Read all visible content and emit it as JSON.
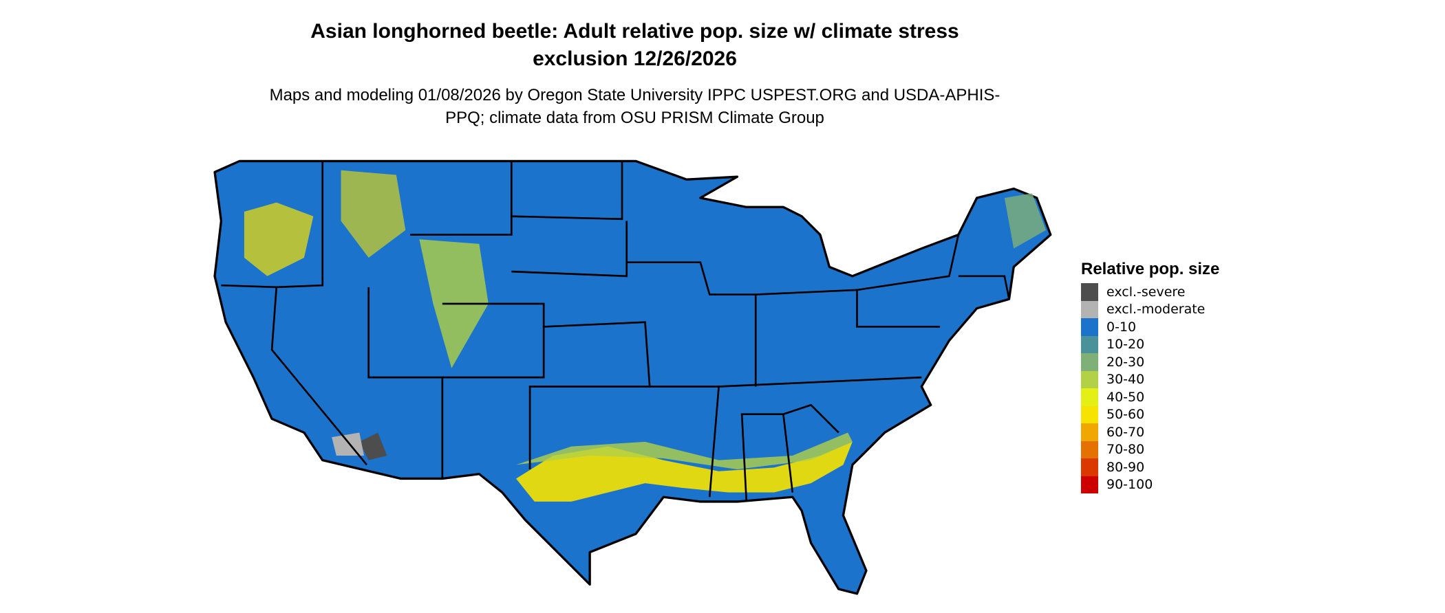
{
  "title": "Asian longhorned beetle: Adult relative pop. size w/ climate stress exclusion 12/26/2026",
  "subtitle": "Maps and modeling 01/08/2026 by Oregon State University IPPC USPEST.ORG and USDA-APHIS-PPQ; climate data from OSU PRISM Climate Group",
  "legend": {
    "title": "Relative pop. size",
    "items": [
      {
        "label": "excl.-severe",
        "color": "#4d4d4d"
      },
      {
        "label": "excl.-moderate",
        "color": "#b3b3b3"
      },
      {
        "label": "0-10",
        "color": "#1b73cc"
      },
      {
        "label": "10-20",
        "color": "#4a929a"
      },
      {
        "label": "20-30",
        "color": "#7fb077"
      },
      {
        "label": "30-40",
        "color": "#b2d147"
      },
      {
        "label": "40-50",
        "color": "#e4f015"
      },
      {
        "label": "50-60",
        "color": "#f7e300"
      },
      {
        "label": "60-70",
        "color": "#f0a800"
      },
      {
        "label": "70-80",
        "color": "#e57200"
      },
      {
        "label": "80-90",
        "color": "#db3800"
      },
      {
        "label": "90-100",
        "color": "#cc0000"
      }
    ]
  }
}
